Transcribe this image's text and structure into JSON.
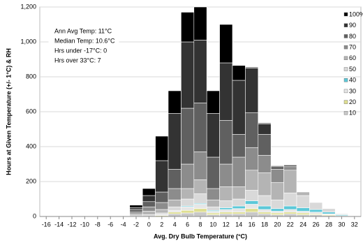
{
  "chart_data": {
    "type": "stacked_bar",
    "xlabel": "Avg. Dry Bulb Temperature (°C)",
    "ylabel": "Hours at Given Temperature (+/- 1°C) & RH",
    "annotations": [
      "Ann Avg Temp: 11°C",
      "Median Temp: 10.6°C",
      "Hrs under -17°C: 0",
      "Hrs over 33°C: 7"
    ],
    "categories": [
      "-16",
      "-14",
      "-12",
      "-10",
      "-8",
      "-6",
      "-4",
      "-2",
      "0",
      "2",
      "4",
      "6",
      "8",
      "10",
      "12",
      "14",
      "16",
      "18",
      "20",
      "22",
      "24",
      "26",
      "28",
      "30",
      "32"
    ],
    "ylim": [
      0,
      1200
    ],
    "yticks": [
      0,
      200,
      400,
      600,
      800,
      {
        "value": 1000,
        "label": "1,000"
      },
      {
        "value": 1200,
        "label": "1,200"
      }
    ],
    "grid": true,
    "legend": "top-right",
    "series": [
      {
        "name": "100%",
        "color": "#000000",
        "values": [
          0,
          0,
          0,
          0,
          0,
          0,
          0,
          15,
          40,
          140,
          130,
          170,
          190,
          130,
          220,
          85,
          5,
          5,
          0,
          0,
          0,
          0,
          0,
          0,
          0
        ]
      },
      {
        "name": "90",
        "color": "#333333",
        "values": [
          0,
          0,
          0,
          0,
          0,
          0,
          0,
          10,
          35,
          180,
          320,
          380,
          360,
          250,
          330,
          310,
          255,
          60,
          5,
          0,
          0,
          0,
          0,
          0,
          0
        ]
      },
      {
        "name": "80",
        "color": "#606060",
        "values": [
          0,
          0,
          0,
          0,
          0,
          0,
          0,
          15,
          30,
          60,
          110,
          320,
          280,
          180,
          250,
          130,
          200,
          120,
          15,
          10,
          0,
          0,
          0,
          0,
          0
        ]
      },
      {
        "name": "70",
        "color": "#8c8c8c",
        "values": [
          0,
          0,
          0,
          0,
          0,
          0,
          0,
          10,
          25,
          40,
          65,
          140,
          160,
          65,
          130,
          170,
          130,
          100,
          75,
          20,
          0,
          0,
          0,
          0,
          0
        ]
      },
      {
        "name": "60",
        "color": "#b4b4b4",
        "values": [
          0,
          0,
          0,
          0,
          0,
          0,
          0,
          10,
          20,
          20,
          40,
          60,
          80,
          40,
          80,
          70,
          115,
          130,
          100,
          130,
          20,
          0,
          0,
          0,
          0
        ]
      },
      {
        "name": "50",
        "color": "#d9d9d9",
        "values": [
          0,
          0,
          0,
          0,
          0,
          0,
          0,
          5,
          10,
          10,
          20,
          40,
          55,
          20,
          40,
          40,
          60,
          60,
          50,
          75,
          70,
          40,
          20,
          5,
          0
        ]
      },
      {
        "name": "40",
        "color": "#5cc8d8",
        "values": [
          0,
          0,
          0,
          0,
          0,
          0,
          0,
          0,
          0,
          0,
          0,
          5,
          5,
          5,
          10,
          15,
          20,
          20,
          15,
          20,
          20,
          15,
          10,
          5,
          0
        ]
      },
      {
        "name": "30",
        "color": "#e6e6e6",
        "values": [
          0,
          0,
          0,
          0,
          0,
          0,
          0,
          0,
          0,
          5,
          10,
          20,
          25,
          10,
          15,
          20,
          25,
          15,
          10,
          15,
          10,
          10,
          5,
          5,
          0
        ]
      },
      {
        "name": "20",
        "color": "#dede90",
        "values": [
          0,
          0,
          0,
          0,
          0,
          0,
          0,
          0,
          0,
          5,
          10,
          15,
          20,
          10,
          10,
          10,
          20,
          10,
          10,
          10,
          10,
          5,
          5,
          0,
          0
        ]
      },
      {
        "name": "10",
        "color": "#c8c8c8",
        "values": [
          0,
          0,
          0,
          0,
          0,
          0,
          0,
          0,
          0,
          0,
          15,
          20,
          25,
          10,
          15,
          15,
          25,
          15,
          10,
          15,
          10,
          10,
          5,
          0,
          0
        ]
      }
    ]
  }
}
